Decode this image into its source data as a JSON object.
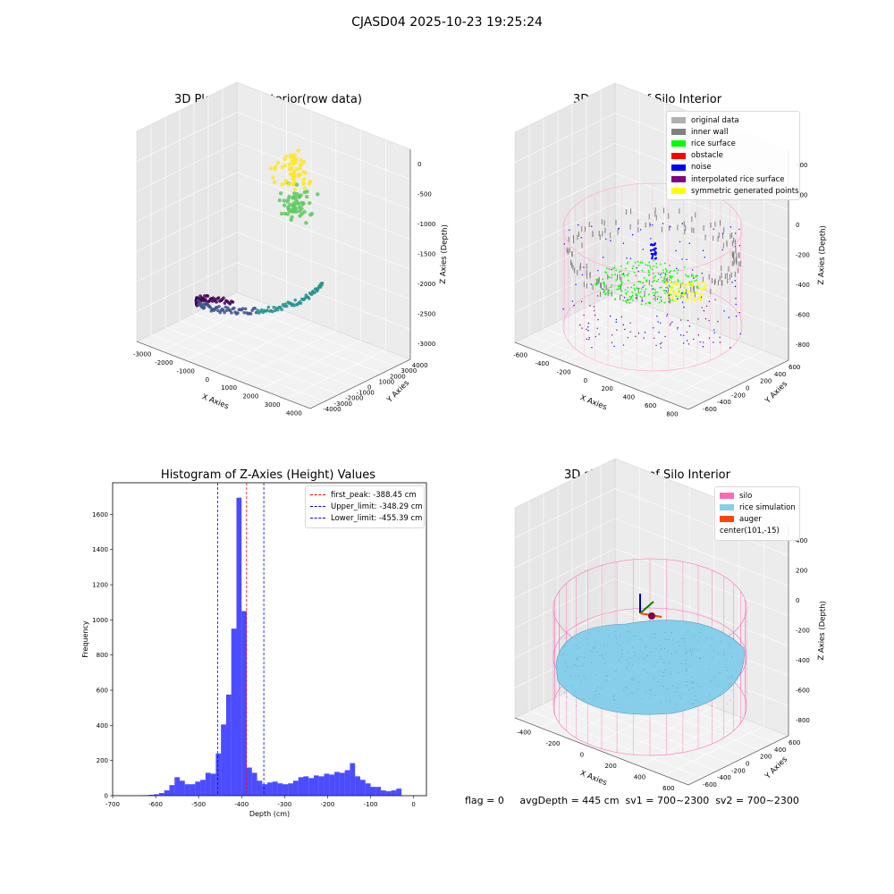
{
  "suptitle": "CJASD04 2025-10-23 19:25:24",
  "footer": "flag = 0     avgDepth = 445 cm  sv1 = 700~2300  sv2 = 700~2300",
  "chart_data": [
    {
      "type": "scatter",
      "title": "3D Plot of Silo Interior(row data)",
      "xlabel": "X Axies",
      "ylabel": "Y Axies",
      "zlabel": "Z Axies (Depth)",
      "x_ticks": [
        "-3000",
        "-2000",
        "-1000",
        "0",
        "1000",
        "2000",
        "3000",
        "4000"
      ],
      "y_ticks": [
        "-4000",
        "-3000",
        "-2000",
        "-1000",
        "0",
        "1000",
        "2000",
        "3000",
        "4000"
      ],
      "z_ticks": [
        "0",
        "-500",
        "-1000",
        "-1500",
        "-2000",
        "-2500",
        "-3000"
      ],
      "colormap": "viridis"
    },
    {
      "type": "scatter",
      "title": "3D classify of Silo Interior",
      "xlabel": "X Axies",
      "ylabel": "Y Axies",
      "zlabel": "Z Axies (Depth)",
      "x_ticks": [
        "-600",
        "-400",
        "-200",
        "0",
        "200",
        "400",
        "600",
        "800"
      ],
      "y_ticks": [
        "-600",
        "-400",
        "-200",
        "0",
        "200",
        "400",
        "600"
      ],
      "z_ticks": [
        "400",
        "200",
        "0",
        "-200",
        "-400",
        "-600",
        "-800"
      ],
      "legend_position": "top-right",
      "legend": [
        {
          "label": "original data",
          "color": "#b0b0b0"
        },
        {
          "label": "inner wall",
          "color": "#808080"
        },
        {
          "label": "rice surface",
          "color": "#00ff00"
        },
        {
          "label": "obstacle",
          "color": "#ff0000"
        },
        {
          "label": "noise",
          "color": "#0000ff"
        },
        {
          "label": "interpolated rice surface",
          "color": "#800080"
        },
        {
          "label": "symmetric generated points",
          "color": "#ffff00"
        }
      ]
    },
    {
      "type": "bar",
      "title": "Histogram of Z-Axies (Height) Values",
      "xlabel": "Depth (cm)",
      "ylabel": "Frequency",
      "xlim": [
        -700,
        30
      ],
      "ylim": [
        0,
        1780
      ],
      "x_ticks": [
        -700,
        -600,
        -500,
        -400,
        -300,
        -200,
        -100,
        0
      ],
      "y_ticks": [
        0,
        200,
        400,
        600,
        800,
        1000,
        1200,
        1400,
        1600
      ],
      "bin_width": 12,
      "bin_starts": [
        -640,
        -628,
        -616,
        -604,
        -592,
        -580,
        -568,
        -556,
        -544,
        -532,
        -520,
        -508,
        -496,
        -484,
        -472,
        -460,
        -448,
        -436,
        -424,
        -412,
        -400,
        -388,
        -376,
        -364,
        -352,
        -340,
        -328,
        -316,
        -304,
        -292,
        -280,
        -268,
        -256,
        -244,
        -232,
        -220,
        -208,
        -196,
        -184,
        -172,
        -160,
        -148,
        -136,
        -124,
        -112,
        -100,
        -88,
        -76,
        -64,
        -52,
        -40,
        -28,
        -16,
        -4
      ],
      "values": [
        2,
        3,
        5,
        8,
        15,
        30,
        60,
        105,
        85,
        65,
        65,
        80,
        90,
        130,
        125,
        240,
        405,
        575,
        950,
        1695,
        1050,
        160,
        130,
        85,
        65,
        75,
        80,
        70,
        65,
        70,
        85,
        105,
        110,
        100,
        115,
        110,
        125,
        120,
        135,
        130,
        145,
        185,
        110,
        90,
        70,
        50,
        50,
        30,
        25,
        30,
        40,
        0,
        0,
        0
      ],
      "bar_color": "#0000ff",
      "vlines": [
        {
          "label": "first_peak: -388.45 cm",
          "x": -388.45,
          "color": "#ff0000"
        },
        {
          "label": "Upper_limit: -348.29 cm",
          "x": -348.29,
          "color": "#0000ff"
        },
        {
          "label": "Lower_limit: -455.39 cm",
          "x": -455.39,
          "color": "#0000ff"
        }
      ],
      "legend_position": "top-right"
    },
    {
      "type": "surface",
      "title": "3D simulation of Silo Interior",
      "xlabel": "X Axies",
      "ylabel": "Y Axies",
      "zlabel": "Z Axies (Depth)",
      "x_ticks": [
        "-400",
        "-200",
        "0",
        "200",
        "400",
        "600"
      ],
      "y_ticks": [
        "-600",
        "-400",
        "-200",
        "0",
        "200",
        "400",
        "600"
      ],
      "z_ticks": [
        "400",
        "200",
        "0",
        "-200",
        "-400",
        "-600",
        "-800"
      ],
      "legend_position": "top-right",
      "legend": [
        {
          "label": "silo",
          "color": "#ff69b4"
        },
        {
          "label": "rice simulation",
          "color": "#87ceeb"
        },
        {
          "label": "auger",
          "color": "#ff4500"
        },
        {
          "label": "center(101,-15)",
          "color": ""
        }
      ]
    }
  ]
}
